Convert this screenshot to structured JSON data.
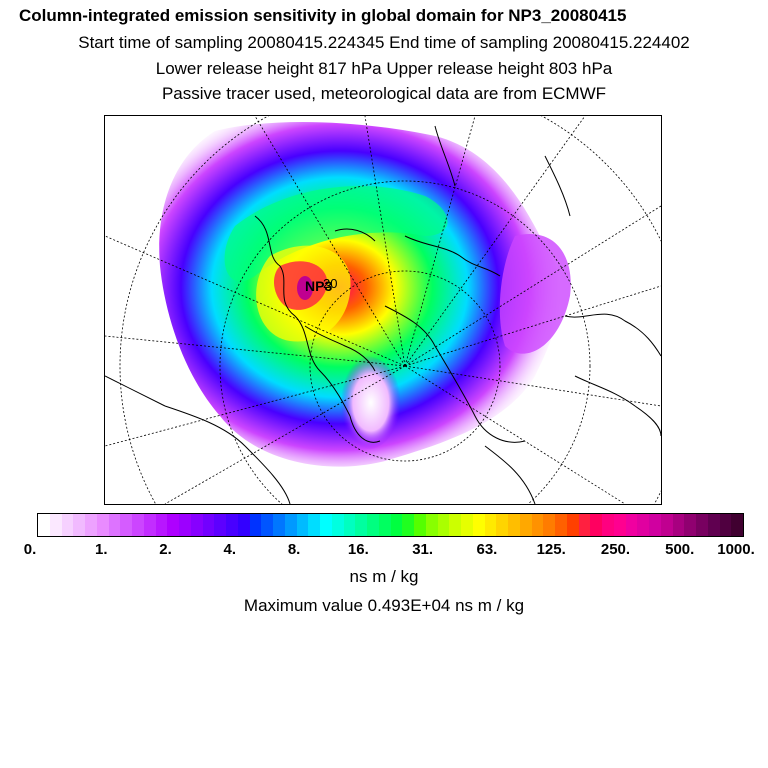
{
  "titles": {
    "line1": "Column-integrated emission sensitivity in global domain for NP3_20080415",
    "line2": "Start time of sampling 20080415.224345     End time of sampling 20080415.224402",
    "line3": "Lower release height  817 hPa        Upper release height  803 hPa",
    "line4": "Passive tracer used, meteorological data are from ECMWF"
  },
  "map": {
    "projection": "north-polar-stereographic",
    "release_label": "NP3",
    "point_label": "20"
  },
  "colorbar": {
    "tick_labels": [
      "0.",
      "1.",
      "2.",
      "4.",
      "8.",
      "16.",
      "31.",
      "63.",
      "125.",
      "250.",
      "500.",
      "1000."
    ],
    "colors": [
      "#ffffff",
      "#fbe8ff",
      "#f6d1ff",
      "#f1baff",
      "#eda2ff",
      "#e98bff",
      "#dd73ff",
      "#d55cff",
      "#cc45ff",
      "#c22dff",
      "#b816ff",
      "#ae00ff",
      "#9c00ff",
      "#8700ff",
      "#7200ff",
      "#5d00ff",
      "#4800ff",
      "#3300ff",
      "#0033ff",
      "#0055ff",
      "#0077ff",
      "#0099ff",
      "#00bbff",
      "#00ddff",
      "#00ffff",
      "#00ffe0",
      "#00ffc0",
      "#00ffa0",
      "#00ff80",
      "#00ff60",
      "#00ff40",
      "#20ff20",
      "#55ff00",
      "#88ff00",
      "#aaff00",
      "#ccff00",
      "#e6ff00",
      "#ffff00",
      "#ffea00",
      "#ffd400",
      "#ffbe00",
      "#ffa800",
      "#ff9200",
      "#ff7c00",
      "#ff6000",
      "#ff4000",
      "#ff2040",
      "#ff0060",
      "#ff0080",
      "#ff0090",
      "#f000a0",
      "#e000a0",
      "#d000a0",
      "#c00090",
      "#a80080",
      "#900070",
      "#780060",
      "#600050",
      "#500040",
      "#400030"
    ],
    "unit": "ns m / kg"
  },
  "maximum": "Maximum value  0.493E+04 ns m / kg"
}
